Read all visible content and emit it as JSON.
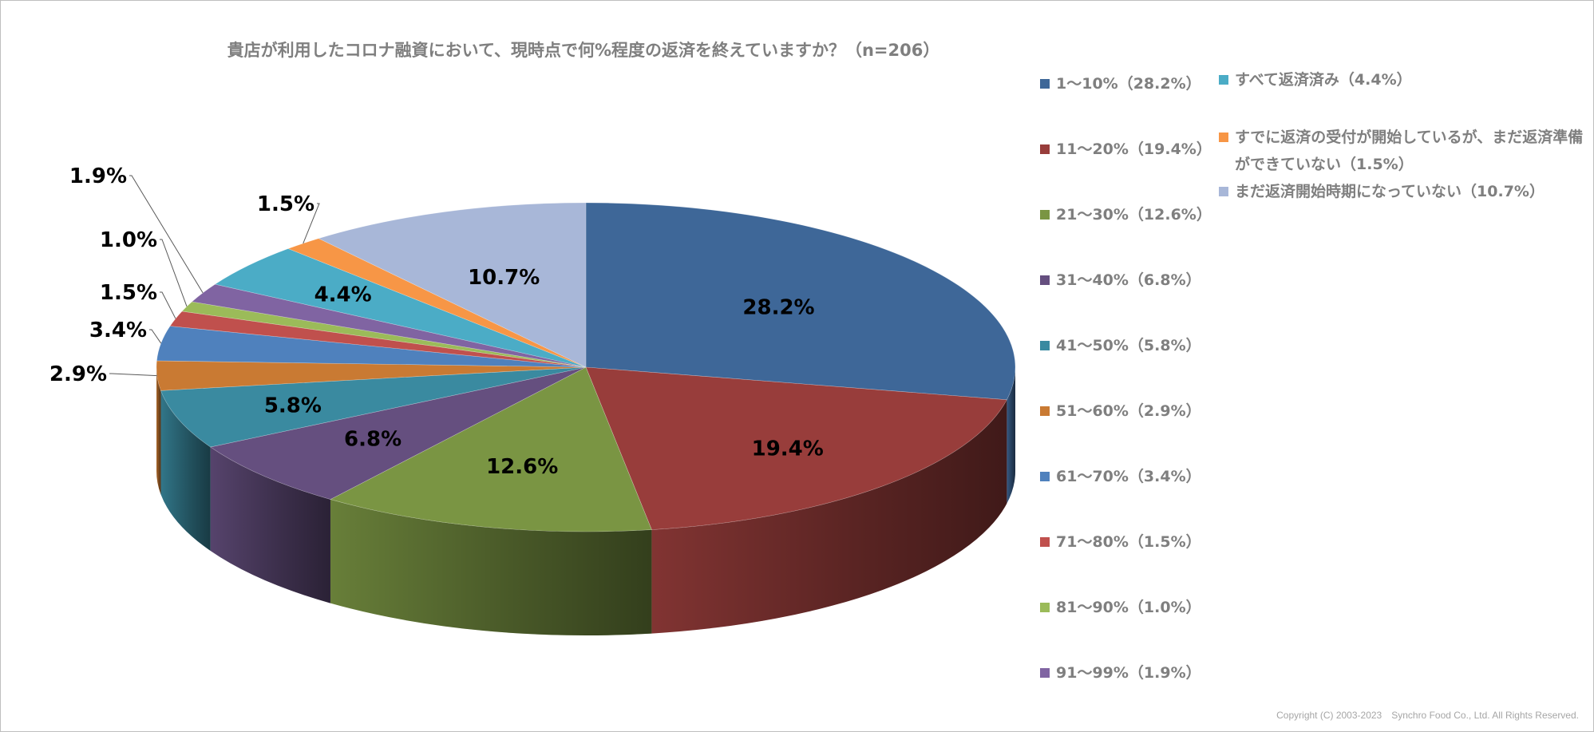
{
  "chart_data": {
    "type": "pie",
    "title": "貴店が利用したコロナ融資において、現時点で何%程度の返済を終えていますか？（n=206）",
    "slices": [
      {
        "label": "1～10%（28.2%）",
        "value": 28.2,
        "data_label": "28.2%",
        "color": "#3e6798"
      },
      {
        "label": "11～20%（19.4%）",
        "value": 19.4,
        "data_label": "19.4%",
        "color": "#983d3b"
      },
      {
        "label": "21～30%（12.6%）",
        "value": 12.6,
        "data_label": "12.6%",
        "color": "#7a9543"
      },
      {
        "label": "31～40%（6.8%）",
        "value": 6.8,
        "data_label": "6.8%",
        "color": "#654f7f"
      },
      {
        "label": "41～50%（5.8%）",
        "value": 5.8,
        "data_label": "5.8%",
        "color": "#3a8aa0"
      },
      {
        "label": "51～60%（2.9%）",
        "value": 2.9,
        "data_label": "2.9%",
        "color": "#c97a33"
      },
      {
        "label": "61～70%（3.4%）",
        "value": 3.4,
        "data_label": "3.4%",
        "color": "#4f81bd"
      },
      {
        "label": "71～80%（1.5%）",
        "value": 1.5,
        "data_label": "1.5%",
        "color": "#c0504d"
      },
      {
        "label": "81～90%（1.0%）",
        "value": 1.0,
        "data_label": "1.0%",
        "color": "#9bbb59"
      },
      {
        "label": "91～99%（1.9%）",
        "value": 1.9,
        "data_label": "1.9%",
        "color": "#8064a2"
      },
      {
        "label": "すべて返済済み（4.4%）",
        "value": 4.4,
        "data_label": "4.4%",
        "color": "#4bacc6"
      },
      {
        "label": "すでに返済の受付が開始しているが、まだ返済準備ができていない（1.5%）",
        "value": 1.5,
        "data_label": "1.5%",
        "color": "#f79646"
      },
      {
        "label": "まだ返済開始時期になっていない（10.7%）",
        "value": 10.7,
        "data_label": "10.7%",
        "color": "#a8b7d8"
      }
    ],
    "legend_position": "right"
  },
  "footer": {
    "copyright": "Copyright (C) 2003-2023　Synchro Food Co., Ltd. All Rights Reserved."
  }
}
